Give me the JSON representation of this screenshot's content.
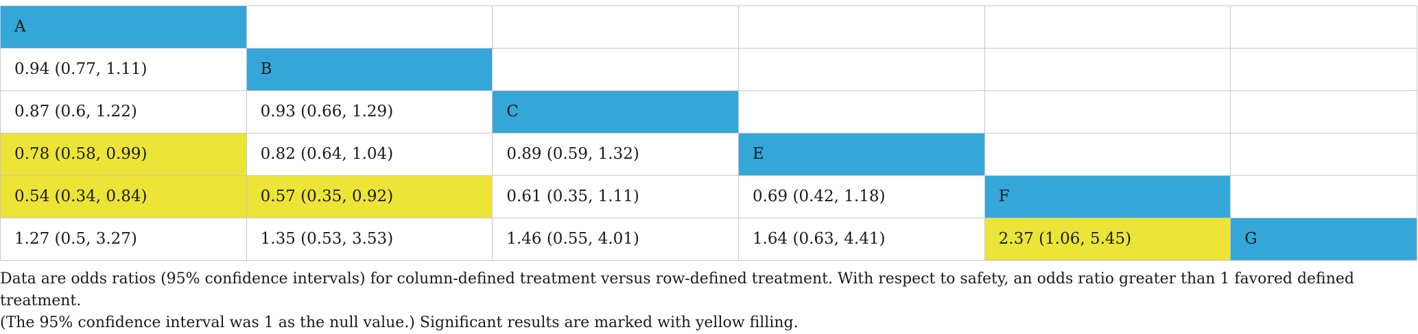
{
  "table": {
    "rows": [
      [
        "A",
        "",
        "",
        "",
        "",
        ""
      ],
      [
        "0.94 (0.77, 1.11)",
        "B",
        "",
        "",
        "",
        ""
      ],
      [
        "0.87 (0.6, 1.22)",
        "0.93 (0.66, 1.29)",
        "C",
        "",
        "",
        ""
      ],
      [
        "0.78 (0.58, 0.99)",
        "0.82 (0.64, 1.04)",
        "0.89 (0.59, 1.32)",
        "E",
        "",
        ""
      ],
      [
        "0.54 (0.34, 0.84)",
        "0.57 (0.35, 0.92)",
        "0.61 (0.35, 1.11)",
        "0.69 (0.42, 1.18)",
        "F",
        ""
      ],
      [
        "1.27 (0.5, 3.27)",
        "1.35 (0.53, 3.53)",
        "1.46 (0.55, 4.01)",
        "1.64 (0.63, 4.41)",
        "2.37 (1.06, 5.45)",
        "G"
      ]
    ],
    "colors": {
      "treatment_cell": "#35a6d8",
      "significant_cell": "#ece437",
      "grid_line": "#c8c8c8"
    },
    "significant": [
      [
        3,
        0
      ],
      [
        4,
        0
      ],
      [
        4,
        1
      ],
      [
        5,
        4
      ]
    ]
  },
  "footnote": {
    "line1": "Data are odds ratios (95% confidence intervals) for column-defined treatment versus row-defined treatment. With respect to safety, an odds ratio greater than 1 favored defined treatment.",
    "line2": "(The 95% confidence interval was 1 as the null value.) Significant results are marked with yellow filling."
  }
}
